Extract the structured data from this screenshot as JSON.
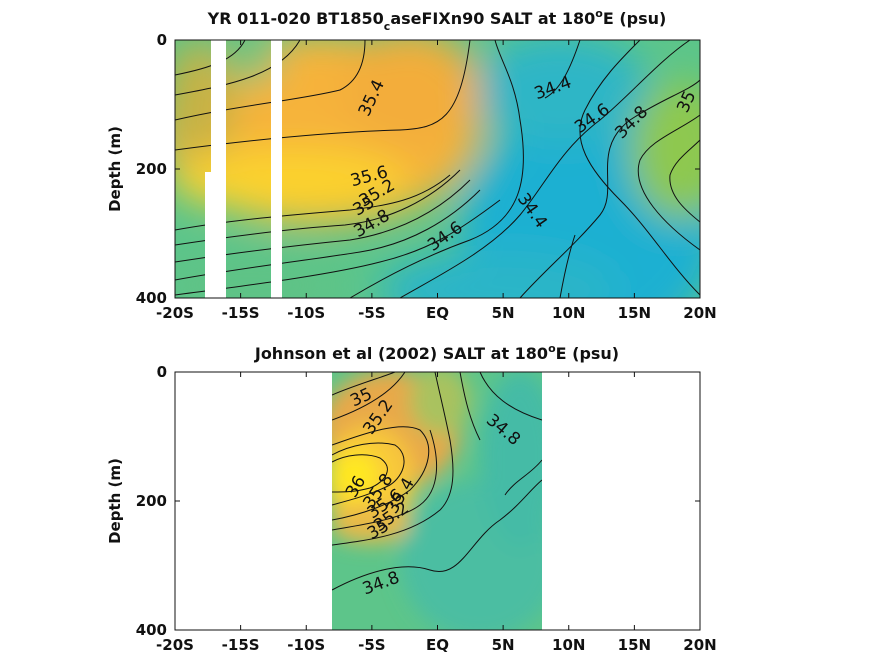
{
  "chart_data": [
    {
      "type": "heatmap",
      "title": "YR 011-020 BT1850",
      "title_sub": "c",
      "title_rest": "aseFIXn90 SALT at 180",
      "title_sup": "o",
      "title_end": "E (psu)",
      "ylabel": "Depth (m)",
      "xlim": [
        -20,
        20
      ],
      "ylim": [
        0,
        400
      ],
      "x_ticks": [
        -20,
        -15,
        -10,
        -5,
        0,
        5,
        10,
        15,
        20
      ],
      "x_tick_labels": [
        "-20S",
        "-15S",
        "-10S",
        "-5S",
        "EQ",
        "5N",
        "10N",
        "15N",
        "20N"
      ],
      "y_ticks": [
        0,
        200,
        400
      ],
      "y_tick_labels": [
        "0",
        "200",
        "400"
      ],
      "data_x_range": [
        -20,
        20
      ],
      "missing_bands": [
        [
          -17.2,
          -15.8
        ],
        [
          -12.6,
          -11.8
        ]
      ],
      "partial_missing": [
        {
          "x": [
            -17.5,
            -17.2
          ],
          "depth_from": 205
        }
      ],
      "contour_labels": [
        {
          "text": "35.4",
          "x": -5,
          "y": 90,
          "rot": -65
        },
        {
          "text": "34.4",
          "x": 8.8,
          "y": 75,
          "rot": -20
        },
        {
          "text": "34.6",
          "x": 11.8,
          "y": 122,
          "rot": -35
        },
        {
          "text": "34.8",
          "x": 14.8,
          "y": 128,
          "rot": -45
        },
        {
          "text": "35",
          "x": 19,
          "y": 96,
          "rot": -65
        },
        {
          "text": "35.6",
          "x": -5.2,
          "y": 212,
          "rot": -15
        },
        {
          "text": "35.2",
          "x": -4.6,
          "y": 238,
          "rot": -30
        },
        {
          "text": "35",
          "x": -5.6,
          "y": 258,
          "rot": -30
        },
        {
          "text": "34.8",
          "x": -5,
          "y": 285,
          "rot": -30
        },
        {
          "text": "34.6",
          "x": 0.6,
          "y": 305,
          "rot": -35
        },
        {
          "text": "34.4",
          "x": 7.2,
          "y": 265,
          "rot": 55
        }
      ]
    },
    {
      "type": "heatmap",
      "title": "Johnson et al (2002) SALT at 180",
      "title_sup": "o",
      "title_end": "E (psu)",
      "ylabel": "Depth (m)",
      "xlim": [
        -20,
        20
      ],
      "ylim": [
        0,
        400
      ],
      "x_ticks": [
        -20,
        -15,
        -10,
        -5,
        0,
        5,
        10,
        15,
        20
      ],
      "x_tick_labels": [
        "-20S",
        "-15S",
        "-10S",
        "-5S",
        "EQ",
        "5N",
        "10N",
        "15N",
        "20N"
      ],
      "y_ticks": [
        0,
        200,
        400
      ],
      "y_tick_labels": [
        "0",
        "200",
        "400"
      ],
      "data_x_range": [
        -8,
        8
      ],
      "data_y_range": [
        5,
        400
      ],
      "contour_labels": [
        {
          "text": "35",
          "x": -5.8,
          "y": 40,
          "rot": -25
        },
        {
          "text": "35.2",
          "x": -4.5,
          "y": 70,
          "rot": -55
        },
        {
          "text": "34.8",
          "x": 5,
          "y": 90,
          "rot": 40
        },
        {
          "text": "36",
          "x": -6.2,
          "y": 178,
          "rot": -60
        },
        {
          "text": "35.8",
          "x": -4.5,
          "y": 185,
          "rot": -55
        },
        {
          "text": "35.4",
          "x": -2.8,
          "y": 192,
          "rot": -60
        },
        {
          "text": "35.6",
          "x": -4,
          "y": 205,
          "rot": -35
        },
        {
          "text": "35.2",
          "x": -3.5,
          "y": 225,
          "rot": -35
        },
        {
          "text": "35",
          "x": -4.5,
          "y": 245,
          "rot": -30
        },
        {
          "text": "34.8",
          "x": -4.3,
          "y": 328,
          "rot": -20
        }
      ]
    }
  ]
}
